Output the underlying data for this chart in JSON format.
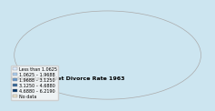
{
  "title": "Interpolated Net Divorce Rate 1963",
  "legend_entries": [
    {
      "label": "Less than 1.0625",
      "color": "#ddeeff"
    },
    {
      "label": "1.0625 – 1.9688",
      "color": "#aaccee"
    },
    {
      "label": "1.9688 – 3.1250",
      "color": "#6699cc"
    },
    {
      "label": "3.1250 – 4.6880",
      "color": "#336699"
    },
    {
      "label": "4.6880 – 6.2190",
      "color": "#003366"
    },
    {
      "label": "No data",
      "color": "#e8e0c8"
    }
  ],
  "background_color": "#cce5f0",
  "land_default_color": "#e8e0c8",
  "ocean_color": "#cce5f0",
  "title_fontsize": 4.5,
  "legend_fontsize": 3.5,
  "country_data": {
    "USA": "#003366",
    "Canada": "#003366",
    "Cuba": "#6699cc",
    "Russia": "#6699cc",
    "Ukraine": "#6699cc",
    "Belarus": "#6699cc",
    "Latvia": "#003366",
    "Estonia": "#003366",
    "Lithuania": "#6699cc",
    "Hungary": "#6699cc",
    "Czech Republic": "#6699cc",
    "Egypt": "#336699",
    "Jordan": "#336699",
    "Australia": "#aaccee",
    "New Zealand": "#aaccee",
    "Japan": "#aaccee",
    "South Korea": "#aaccee",
    "Israel": "#336699",
    "Sweden": "#6699cc",
    "Denmark": "#6699cc",
    "Norway": "#aaccee",
    "Finland": "#aaccee",
    "France": "#aaccee",
    "Germany": "#aaccee",
    "United Kingdom": "#aaccee",
    "Switzerland": "#aaccee",
    "Austria": "#aaccee",
    "Belgium": "#aaccee",
    "Netherlands": "#ddeeff",
    "Argentina": "#aaccee",
    "Uruguay": "#aaccee"
  }
}
